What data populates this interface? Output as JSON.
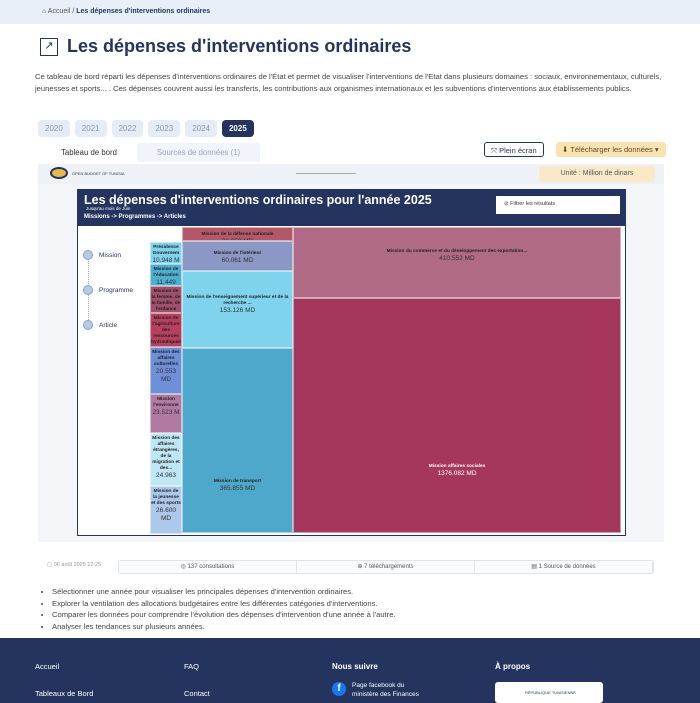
{
  "breadcrumb": {
    "home": "Accueil",
    "sep": "/",
    "current": "Les dépenses d'interventions ordinaires"
  },
  "page": {
    "title": "Les dépenses d'interventions ordinaires",
    "description": "Ce tableau de bord réparti les dépenses d'interventions ordinaires de l'État et permet de visualiser l'interventions de l'Etat dans plusieurs domaines : sociaux, environnementaux, culturels, jeunesses et sports... . Ces dépenses couvrent aussi les transferts, les contributions aux organismes internationaux et les subventions d'interventions aux établissements publics."
  },
  "years": [
    "2020",
    "2021",
    "2022",
    "2023",
    "2024",
    "2025"
  ],
  "selected_year": "2025",
  "tabs": [
    "Tableau de bord",
    "Sources de données (1)"
  ],
  "buttons": {
    "fullscreen": "Plein écran",
    "download": "Télécharger les données ▾"
  },
  "dashboard": {
    "logo_text": "OPEN BUDGET OF TUNISIA",
    "unit": "Unité : Million de dinars",
    "title": "Les dépenses d'interventions ordinaires pour l'année 2025",
    "subtitle": "Jusqu'au mois de Juin",
    "path": "Missions -> Programmes -> Articles",
    "filter": "Filtrer les résultats",
    "levels": [
      "Mission",
      "Programme",
      "Article"
    ]
  },
  "chart_data": {
    "type": "treemap",
    "unit": "MD",
    "items": [
      {
        "label": "Mission affaires sociales",
        "value": "1376.082 MD",
        "color": "#a6375c"
      },
      {
        "label": "Mission du commerce et du développement des exportation...",
        "value": "410.552 MD",
        "color": "#b06a86"
      },
      {
        "label": "Mission de transport",
        "value": "365.855 MD",
        "color": "#4ea8cb"
      },
      {
        "label": "Mission de l'enseignement supérieur et de la recherche ...",
        "value": "153.126 MD",
        "color": "#7fd3ec"
      },
      {
        "label": "Mission de l'intérieur",
        "value": "60.061 MD",
        "color": "#8b97c4"
      },
      {
        "label": "Mission de la défense nationale",
        "value": "26.659 MD",
        "color": "#b35868"
      },
      {
        "label": "Mission de la jeunesse et des sports",
        "value": "26.600 MD",
        "color": "#acc8ea"
      },
      {
        "label": "Mission des affaires étrangères, de la migration et des...",
        "value": "24.963",
        "color": "#bfe6f4"
      },
      {
        "label": "Mission l'environne",
        "value": "23.523 M",
        "color": "#b07aa3"
      },
      {
        "label": "Mission des affaires culturelles",
        "value": "20.553 MD",
        "color": "#6f8fd8"
      },
      {
        "label": "Mission de l'agriculture des ressources hydrauliques",
        "value": "",
        "color": "#b8405e"
      },
      {
        "label": "Mission de la femme, de la famille, de l'enfance",
        "value": "",
        "color": "#a0506c"
      },
      {
        "label": "Mission de l'éducation",
        "value": "11.449",
        "color": "#4eb0d0"
      },
      {
        "label": "Présidence Gouvernem",
        "value": "10.948 M",
        "color": "#7fd3ec"
      }
    ]
  },
  "stats": {
    "date": "06 août 2025 12:25",
    "views": "137 consultations",
    "downloads": "7 téléchargements",
    "sources": "1 Source de données"
  },
  "bullets": [
    "Sélectionner une année pour visualiser les principales dépenses d'intervention ordinaires.",
    "Explorer la ventilation des allocations budgétaires entre les différentes catégories d'interventions.",
    "Comparer les données pour comprendre l'évolution des dépenses d'intervention d'une année à l'autre.",
    "Analyser les tendances sur plusieurs années."
  ],
  "footer": {
    "home": "Accueil",
    "dashboards": "Tableaux de Bord",
    "faq": "FAQ",
    "contact": "Contact",
    "follow": "Nous suivre",
    "facebook": "Page facebook du ministère des Finances",
    "about": "À propos",
    "republic": "RÉPUBLIQUE TUNISIENNE"
  }
}
